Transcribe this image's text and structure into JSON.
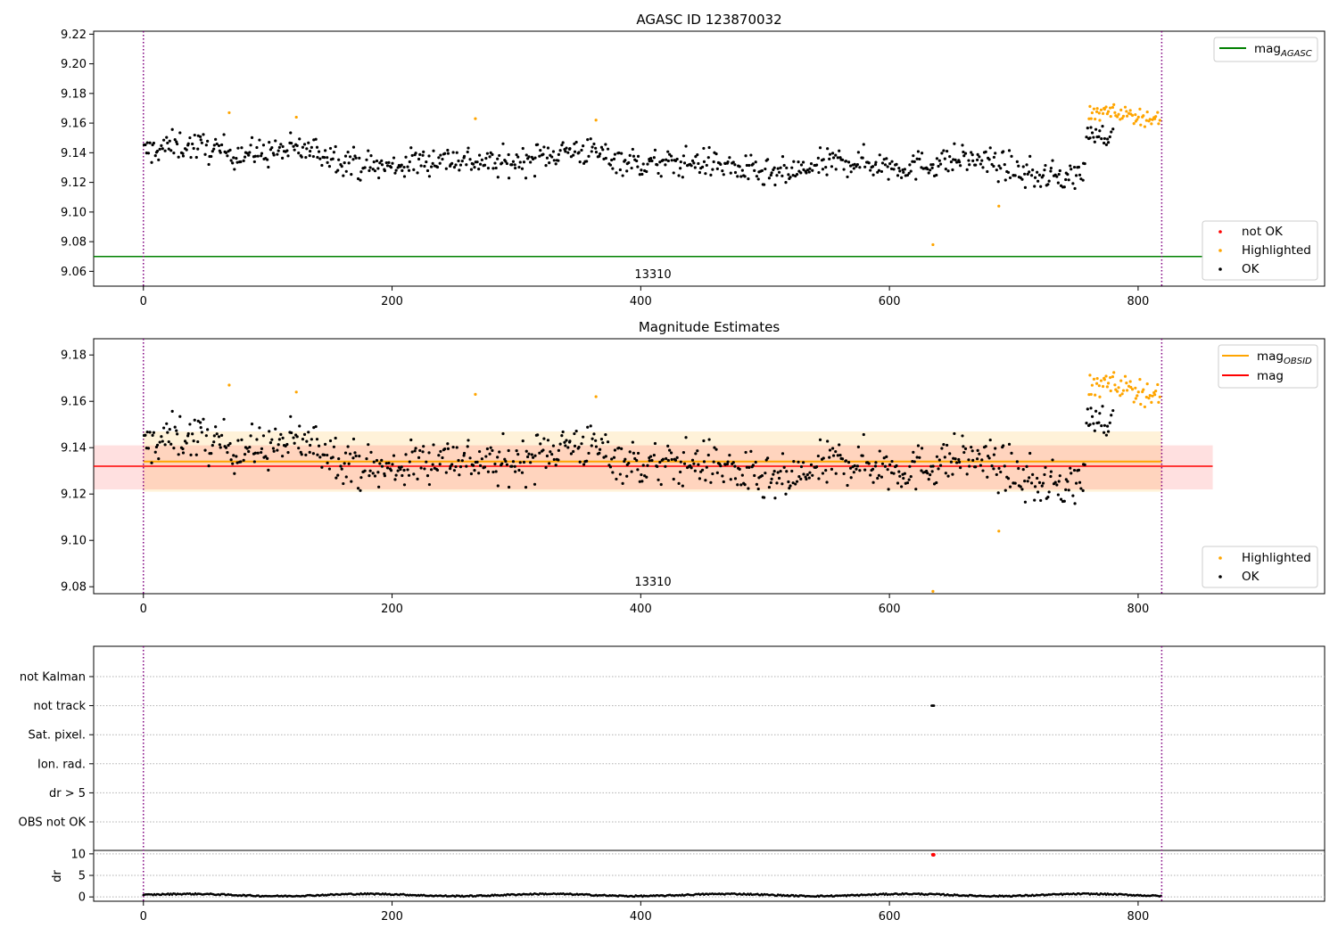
{
  "chart_data": [
    {
      "type": "scatter",
      "title": "AGASC ID 123870032",
      "obsid_label": "13310",
      "ylim": [
        9.05,
        9.222
      ],
      "yticks": [
        9.06,
        9.08,
        9.1,
        9.12,
        9.14,
        9.16,
        9.18,
        9.2,
        9.22
      ],
      "xlim": [
        -40,
        950
      ],
      "xticks": [
        0,
        200,
        400,
        600,
        800
      ],
      "obs_boundaries": [
        0,
        819
      ],
      "mag_agasc": 9.07,
      "legend_lines": [
        {
          "label": "mag",
          "sub": "AGASC",
          "color": "#008000"
        }
      ],
      "legend_markers": [
        {
          "label": "not OK",
          "color": "#ff0000"
        },
        {
          "label": "Highlighted",
          "color": "#ffa500"
        },
        {
          "label": "OK",
          "color": "#000000"
        }
      ],
      "highlighted_points": [
        [
          69,
          9.167
        ],
        [
          123,
          9.164
        ],
        [
          267,
          9.163
        ],
        [
          364,
          9.162
        ],
        [
          635,
          9.078
        ],
        [
          688,
          9.104
        ]
      ],
      "segments": [
        {
          "x": [
            0,
            758
          ],
          "base": 9.14,
          "end": 9.128,
          "scatter": 0.009,
          "color": "#000000"
        },
        {
          "x": [
            758,
            780
          ],
          "base": 9.155,
          "end": 9.152,
          "scatter": 0.006,
          "color": "#000000"
        },
        {
          "x": [
            760,
            818
          ],
          "base": 9.168,
          "end": 9.168,
          "scatter": 0.005,
          "color": "#ffa500"
        }
      ]
    },
    {
      "type": "scatter",
      "title": "Magnitude Estimates",
      "obsid_label": "13310",
      "ylim": [
        9.077,
        9.187
      ],
      "yticks": [
        9.08,
        9.1,
        9.12,
        9.14,
        9.16,
        9.18
      ],
      "xlim": [
        -40,
        950
      ],
      "xticks": [
        0,
        200,
        400,
        600,
        800
      ],
      "obs_boundaries": [
        0,
        819
      ],
      "mag_obsid": 9.134,
      "mag_obsid_band": [
        9.121,
        9.147
      ],
      "mag": 9.132,
      "mag_band": [
        9.122,
        9.141
      ],
      "legend_lines": [
        {
          "label": "mag",
          "sub": "OBSID",
          "color": "#ffa500"
        },
        {
          "label": "mag",
          "sub": "",
          "color": "#ff0000"
        }
      ],
      "legend_markers": [
        {
          "label": "Highlighted",
          "color": "#ffa500"
        },
        {
          "label": "OK",
          "color": "#000000"
        }
      ],
      "highlighted_points": [
        [
          69,
          9.167
        ],
        [
          123,
          9.164
        ],
        [
          267,
          9.163
        ],
        [
          364,
          9.162
        ],
        [
          635,
          9.078
        ],
        [
          688,
          9.104
        ]
      ]
    },
    {
      "type": "scatter",
      "categories": [
        "not Kalman",
        "not track",
        "Sat. pixel.",
        "Ion. rad.",
        "dr > 5",
        "OBS not OK"
      ],
      "flag_points": [
        {
          "category": "not track",
          "x": [
            634,
            636
          ]
        }
      ],
      "dr_ylabel": "dr",
      "dr_yticks": [
        0,
        5,
        10
      ],
      "dr_ylim": [
        -1,
        10.8
      ],
      "dr_level": 0.3,
      "dr_outlier": [
        635,
        9.8
      ],
      "xlim": [
        -40,
        950
      ],
      "xticks": [
        0,
        200,
        400,
        600,
        800
      ],
      "obs_boundaries": [
        0,
        819
      ]
    }
  ]
}
